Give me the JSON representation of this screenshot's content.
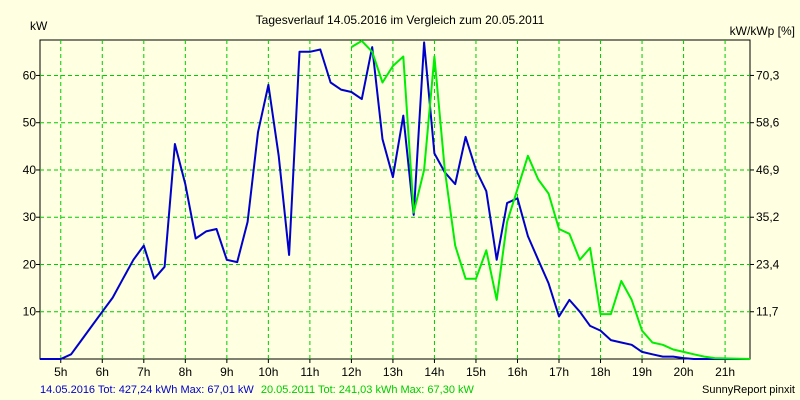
{
  "chart_data": {
    "type": "line",
    "title": "Tagesverlauf 14.05.2016 im Vergleich zum 20.05.2011",
    "ylabel_left": "kW",
    "ylabel_right": "kW/kWp [%]",
    "x_ticks": [
      "5h",
      "6h",
      "7h",
      "8h",
      "9h",
      "10h",
      "11h",
      "12h",
      "13h",
      "14h",
      "15h",
      "16h",
      "17h",
      "18h",
      "19h",
      "20h",
      "21h"
    ],
    "y_ticks_left": [
      "10",
      "20",
      "30",
      "40",
      "50",
      "60"
    ],
    "y_ticks_right": [
      "11,7",
      "23,4",
      "35,2",
      "46,9",
      "58,6",
      "70,3"
    ],
    "xlim": [
      4.5,
      21.6
    ],
    "ylim_left": [
      0,
      67.5
    ],
    "grid": true,
    "colors": {
      "background": "#ffffe1",
      "plot_background": "#ffffe1",
      "grid": "#00cc00",
      "series_2016": "#0000cc",
      "series_2011": "#00ee00",
      "footer_2016": "#0000cc",
      "footer_2011": "#00cc00"
    },
    "series": [
      {
        "key": "s2016",
        "x": [
          4.5,
          5.0,
          5.25,
          5.5,
          5.75,
          6.0,
          6.25,
          6.5,
          6.75,
          7.0,
          7.25,
          7.5,
          7.75,
          8.0,
          8.25,
          8.5,
          8.75,
          9.0,
          9.25,
          9.5,
          9.75,
          10.0,
          10.25,
          10.5,
          10.75,
          11.0,
          11.25,
          11.5,
          11.75,
          12.0,
          12.25,
          12.5,
          12.75,
          13.0,
          13.25,
          13.5,
          13.75,
          14.0,
          14.25,
          14.5,
          14.75,
          15.0,
          15.25,
          15.5,
          15.75,
          16.0,
          16.25,
          16.5,
          16.75,
          17.0,
          17.25,
          17.5,
          17.75,
          18.0,
          18.25,
          18.5,
          18.75,
          19.0,
          19.25,
          19.5,
          19.75,
          20.0,
          20.25,
          20.5,
          21.6
        ],
        "values": [
          0,
          0,
          1,
          4,
          7,
          10,
          13,
          17,
          21,
          24,
          17,
          19.5,
          45.5,
          37,
          25.5,
          27,
          27.5,
          21,
          20.5,
          29,
          48,
          58,
          43,
          22,
          65,
          65,
          65.5,
          58.5,
          57,
          56.5,
          55,
          66,
          46.5,
          38.5,
          51.5,
          30.5,
          67,
          43.5,
          39.5,
          37,
          47,
          40,
          35.5,
          21,
          33,
          34,
          26,
          21,
          16,
          9,
          12.5,
          10,
          7,
          6,
          4,
          3.5,
          3,
          1.5,
          1,
          0.5,
          0.5,
          0.2,
          0,
          0,
          0
        ]
      },
      {
        "key": "s2011",
        "x": [
          12.0,
          12.25,
          12.5,
          12.75,
          13.0,
          13.25,
          13.5,
          13.75,
          14.0,
          14.25,
          14.5,
          14.75,
          15.0,
          15.25,
          15.5,
          15.75,
          16.0,
          16.25,
          16.5,
          16.75,
          17.0,
          17.25,
          17.5,
          17.75,
          18.0,
          18.25,
          18.5,
          18.75,
          19.0,
          19.25,
          19.5,
          19.75,
          20.0,
          20.25,
          20.5,
          20.75,
          21.6
        ],
        "values": [
          66,
          67.3,
          65,
          58.5,
          62,
          64,
          31,
          40,
          64,
          40,
          24,
          17,
          17,
          23,
          12.5,
          29,
          36,
          43,
          38,
          35,
          27.5,
          26.5,
          21,
          23.5,
          9.5,
          9.5,
          16.5,
          12.5,
          6,
          3.5,
          3,
          2,
          1.5,
          1,
          0.5,
          0.2,
          0
        ]
      }
    ],
    "footer": {
      "s2016_text": "14.05.2016 Tot: 427,24 kWh Max: 67,01 kW",
      "s2011_text": "20.05.2011 Tot: 241,03 kWh Max: 67,30 kW",
      "credit": "SunnyReport pinxit"
    }
  }
}
